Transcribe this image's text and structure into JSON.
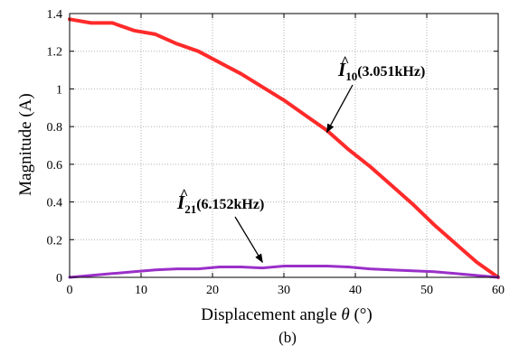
{
  "chart_data": {
    "type": "line",
    "xlabel_text": "Displacement angle ",
    "xlabel_symbol": "θ",
    "xlabel_unit": " (°)",
    "ylabel": "Magnitude (A)",
    "caption": "(b)",
    "xlim": [
      0,
      60
    ],
    "ylim": [
      0,
      1.4
    ],
    "xticks": [
      0,
      10,
      20,
      30,
      40,
      50,
      60
    ],
    "yticks": [
      0,
      0.2,
      0.4,
      0.6,
      0.8,
      1,
      1.2,
      1.4
    ],
    "xtick_labels": [
      "0",
      "10",
      "20",
      "30",
      "40",
      "50",
      "60"
    ],
    "ytick_labels": [
      "0",
      "0.2",
      "0.4",
      "0.6",
      "0.8",
      "1",
      "1.2",
      "1.4"
    ],
    "grid": true,
    "series": [
      {
        "color": "#ff2a2a",
        "x": [
          0,
          3,
          6,
          9,
          12,
          15,
          18,
          21,
          24,
          27,
          30,
          33,
          36,
          39,
          42,
          45,
          48,
          51,
          54,
          57,
          60
        ],
        "y": [
          1.37,
          1.35,
          1.35,
          1.31,
          1.29,
          1.24,
          1.2,
          1.14,
          1.08,
          1.01,
          0.94,
          0.86,
          0.78,
          0.68,
          0.59,
          0.49,
          0.39,
          0.28,
          0.18,
          0.08,
          0.0
        ]
      },
      {
        "color": "#9a30c8",
        "x": [
          0,
          3,
          6,
          9,
          12,
          15,
          18,
          21,
          24,
          27,
          30,
          33,
          36,
          39,
          42,
          45,
          48,
          51,
          54,
          57,
          60
        ],
        "y": [
          0.0,
          0.01,
          0.02,
          0.03,
          0.04,
          0.045,
          0.045,
          0.055,
          0.055,
          0.05,
          0.06,
          0.06,
          0.06,
          0.055,
          0.045,
          0.04,
          0.035,
          0.03,
          0.02,
          0.01,
          0.0
        ]
      }
    ],
    "annotations": [
      {
        "symbol": "I",
        "hat": "^",
        "subscript": "10",
        "text": "(3.051kHz)",
        "arrow_to": [
          36,
          0.77
        ]
      },
      {
        "symbol": "I",
        "hat": "^",
        "subscript": "21",
        "text": "(6.152kHz)",
        "arrow_to": [
          27,
          0.08
        ]
      }
    ]
  }
}
